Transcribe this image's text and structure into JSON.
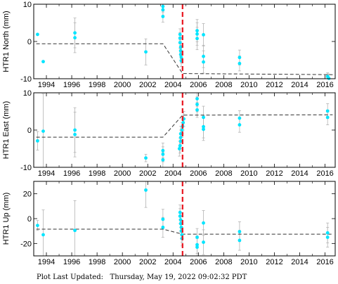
{
  "footer": {
    "label": "Plot Last Updated:",
    "date": "Thursday, May 19, 2022 09:02:32 PDT"
  },
  "colors": {
    "points": "#00e5ff",
    "error_bars": "#b4b4b4",
    "model": "#333333",
    "event_line": "#e8141e",
    "axes": "#000000"
  },
  "chart_data": [
    {
      "type": "scatter",
      "ylabel": "HTR1 North (mm)",
      "xlim": [
        1993.0,
        2016.8
      ],
      "ylim": [
        -10,
        10
      ],
      "yticks": [
        -10,
        0,
        10
      ],
      "xticks": [
        1994,
        1996,
        1998,
        2000,
        2002,
        2004,
        2006,
        2008,
        2010,
        2012,
        2014,
        2016
      ],
      "show_x_tick_labels": true,
      "event_x": 2004.75,
      "model": [
        [
          1993.2,
          -0.6
        ],
        [
          2003.2,
          -0.6
        ],
        [
          2004.75,
          -8.6
        ],
        [
          2016.6,
          -8.9
        ]
      ],
      "points": [
        {
          "x": 1993.3,
          "y": 1.9,
          "err": 0
        },
        {
          "x": 1993.75,
          "y": -5.4,
          "err": 0
        },
        {
          "x": 1996.25,
          "y": 2.3,
          "err": 4
        },
        {
          "x": 1996.25,
          "y": 1.0,
          "err": 4
        },
        {
          "x": 2001.85,
          "y": -2.8,
          "err": 3.5
        },
        {
          "x": 2003.2,
          "y": 9.4,
          "err": 1.5
        },
        {
          "x": 2003.2,
          "y": 8.5,
          "err": 1.5
        },
        {
          "x": 2003.2,
          "y": 6.7,
          "err": 1.5
        },
        {
          "x": 2004.55,
          "y": 1.9,
          "err": 1.5
        },
        {
          "x": 2004.55,
          "y": 0.9,
          "err": 1.5
        },
        {
          "x": 2004.55,
          "y": -0.3,
          "err": 1.5
        },
        {
          "x": 2004.6,
          "y": -1.5,
          "err": 1.5
        },
        {
          "x": 2004.6,
          "y": -2.5,
          "err": 1.5
        },
        {
          "x": 2004.6,
          "y": -3.5,
          "err": 1.5
        },
        {
          "x": 2004.65,
          "y": -4.3,
          "err": 1.5
        },
        {
          "x": 2004.65,
          "y": -5.2,
          "err": 1.5
        },
        {
          "x": 2005.9,
          "y": 2.9,
          "err": 3
        },
        {
          "x": 2005.9,
          "y": 2.0,
          "err": 3
        },
        {
          "x": 2005.9,
          "y": 0.8,
          "err": 3
        },
        {
          "x": 2006.4,
          "y": 1.8,
          "err": 3
        },
        {
          "x": 2006.4,
          "y": -4.0,
          "err": 3
        },
        {
          "x": 2006.4,
          "y": -5.5,
          "err": 3
        },
        {
          "x": 2009.25,
          "y": -4.3,
          "err": 2
        },
        {
          "x": 2009.25,
          "y": -5.9,
          "err": 2
        },
        {
          "x": 2016.2,
          "y": -9.4,
          "err": 1
        },
        {
          "x": 2016.25,
          "y": -9.7,
          "err": 1
        },
        {
          "x": 2016.3,
          "y": -9.9,
          "err": 1
        }
      ]
    },
    {
      "type": "scatter",
      "ylabel": "HTR1 East (mm)",
      "xlim": [
        1993.0,
        2016.8
      ],
      "ylim": [
        -10,
        10
      ],
      "yticks": [
        -10,
        0,
        10
      ],
      "xticks": [
        1994,
        1996,
        1998,
        2000,
        2002,
        2004,
        2006,
        2008,
        2010,
        2012,
        2014,
        2016
      ],
      "show_x_tick_labels": true,
      "event_x": 2004.75,
      "model": [
        [
          1993.2,
          -1.9
        ],
        [
          2003.2,
          -1.9
        ],
        [
          2004.75,
          4.0
        ],
        [
          2016.6,
          4.1
        ]
      ],
      "points": [
        {
          "x": 1993.3,
          "y": -2.9,
          "err": 2.5
        },
        {
          "x": 1993.75,
          "y": -0.3,
          "err": 10
        },
        {
          "x": 1996.25,
          "y": 0.0,
          "err": 6
        },
        {
          "x": 1996.25,
          "y": -1.2,
          "err": 6
        },
        {
          "x": 2001.85,
          "y": -7.5,
          "err": 1
        },
        {
          "x": 2003.2,
          "y": -5.5,
          "err": 2
        },
        {
          "x": 2003.2,
          "y": -6.5,
          "err": 2
        },
        {
          "x": 2003.2,
          "y": -8.0,
          "err": 2
        },
        {
          "x": 2004.5,
          "y": -5.0,
          "err": 2
        },
        {
          "x": 2004.55,
          "y": -4.2,
          "err": 2
        },
        {
          "x": 2004.6,
          "y": -3.0,
          "err": 2
        },
        {
          "x": 2004.6,
          "y": -2.0,
          "err": 2
        },
        {
          "x": 2004.6,
          "y": -1.0,
          "err": 2
        },
        {
          "x": 2004.7,
          "y": 0.0,
          "err": 2
        },
        {
          "x": 2004.75,
          "y": 1.0,
          "err": 2
        },
        {
          "x": 2004.8,
          "y": 2.0,
          "err": 2
        },
        {
          "x": 2004.85,
          "y": 3.0,
          "err": 2
        },
        {
          "x": 2005.9,
          "y": 8.4,
          "err": 2
        },
        {
          "x": 2005.9,
          "y": 6.9,
          "err": 2
        },
        {
          "x": 2005.9,
          "y": 5.4,
          "err": 2
        },
        {
          "x": 2006.4,
          "y": 3.4,
          "err": 3
        },
        {
          "x": 2006.4,
          "y": 0.9,
          "err": 3
        },
        {
          "x": 2006.4,
          "y": 0.2,
          "err": 3
        },
        {
          "x": 2009.25,
          "y": 3.2,
          "err": 2
        },
        {
          "x": 2009.25,
          "y": 1.4,
          "err": 2
        },
        {
          "x": 2016.2,
          "y": 5.1,
          "err": 2
        },
        {
          "x": 2016.2,
          "y": 3.4,
          "err": 2
        }
      ]
    },
    {
      "type": "scatter",
      "ylabel": "HTR1 Up (mm)",
      "xlim": [
        1993.0,
        2016.8
      ],
      "ylim": [
        -30,
        30
      ],
      "yticks": [
        -20,
        0,
        20
      ],
      "xticks": [
        1994,
        1996,
        1998,
        2000,
        2002,
        2004,
        2006,
        2008,
        2010,
        2012,
        2014,
        2016
      ],
      "show_x_tick_labels": true,
      "event_x": 2004.75,
      "model": [
        [
          1993.2,
          -8.5
        ],
        [
          2003.2,
          -8.5
        ],
        [
          2004.75,
          -12.5
        ],
        [
          2016.6,
          -12.5
        ]
      ],
      "points": [
        {
          "x": 1993.3,
          "y": -5.5,
          "err": 4
        },
        {
          "x": 1993.75,
          "y": -13.0,
          "err": 20
        },
        {
          "x": 1996.25,
          "y": -9.5,
          "err": 24
        },
        {
          "x": 2001.85,
          "y": 23.0,
          "err": 14
        },
        {
          "x": 2003.2,
          "y": -0.5,
          "err": 8
        },
        {
          "x": 2003.2,
          "y": -7.0,
          "err": 8
        },
        {
          "x": 2004.55,
          "y": 5.0,
          "err": 6
        },
        {
          "x": 2004.55,
          "y": 2.0,
          "err": 6
        },
        {
          "x": 2004.6,
          "y": -1.0,
          "err": 6
        },
        {
          "x": 2004.6,
          "y": -4.0,
          "err": 6
        },
        {
          "x": 2004.65,
          "y": -7.0,
          "err": 6
        },
        {
          "x": 2004.65,
          "y": -10.0,
          "err": 6
        },
        {
          "x": 2004.7,
          "y": -13.0,
          "err": 6
        },
        {
          "x": 2004.7,
          "y": -16.0,
          "err": 6
        },
        {
          "x": 2005.9,
          "y": -15.0,
          "err": 7
        },
        {
          "x": 2005.9,
          "y": -21.0,
          "err": 7
        },
        {
          "x": 2005.9,
          "y": -23.0,
          "err": 7
        },
        {
          "x": 2006.4,
          "y": -3.5,
          "err": 10
        },
        {
          "x": 2006.4,
          "y": -19.0,
          "err": 10
        },
        {
          "x": 2009.25,
          "y": -10.5,
          "err": 8
        },
        {
          "x": 2009.25,
          "y": -17.5,
          "err": 8
        },
        {
          "x": 2016.2,
          "y": -11.5,
          "err": 8
        },
        {
          "x": 2016.2,
          "y": -15.0,
          "err": 8
        }
      ]
    }
  ]
}
